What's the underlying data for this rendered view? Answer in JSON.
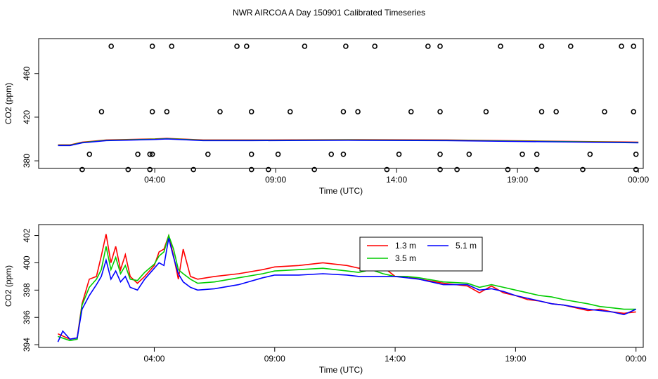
{
  "figure": {
    "title": "NWR AIRCOA A  Day 150901  Calibrated Timeseries"
  },
  "chart_data": [
    {
      "type": "line",
      "panel": "top",
      "xlabel": "Time (UTC)",
      "ylabel": "CO2 (ppm)",
      "xlim_hours": [
        -0.8,
        24.2
      ],
      "ylim": [
        373,
        492
      ],
      "x_ticks": [
        {
          "hour": 4,
          "label": "04:00"
        },
        {
          "hour": 9,
          "label": "09:00"
        },
        {
          "hour": 14,
          "label": "14:00"
        },
        {
          "hour": 19,
          "label": "19:00"
        },
        {
          "hour": 24,
          "label": "00:00"
        }
      ],
      "y_ticks": [
        380,
        420,
        460
      ],
      "colors": {
        "1.3 m": "#ff0000",
        "3.5 m": "#00cc00",
        "5.1 m": "#0000ff"
      },
      "circles": {
        "values": [
          485,
          425,
          386,
          372
        ],
        "hours": [
          [
            2.2,
            3.9,
            4.7,
            7.4,
            7.8,
            10.2,
            11.9,
            13.1,
            15.3,
            15.8,
            18.3,
            20.0,
            21.2,
            23.3,
            23.8
          ],
          [
            1.8,
            3.9,
            4.5,
            6.7,
            8.0,
            9.6,
            11.8,
            12.4,
            14.6,
            15.8,
            17.7,
            20.0,
            20.6,
            22.6,
            23.8
          ],
          [
            1.3,
            3.3,
            3.8,
            3.9,
            6.2,
            8.0,
            9.1,
            11.3,
            11.8,
            14.1,
            15.8,
            17.0,
            19.2,
            19.8,
            22.0,
            23.9
          ],
          [
            1.0,
            2.9,
            3.8,
            5.6,
            8.0,
            8.7,
            10.6,
            13.6,
            15.8,
            16.5,
            18.6,
            19.8,
            21.7,
            23.9
          ]
        ]
      }
    },
    {
      "type": "line",
      "panel": "bottom",
      "xlabel": "Time (UTC)",
      "ylabel": "CO2 (ppm)",
      "xlim_hours": [
        -0.8,
        24.3
      ],
      "ylim": [
        393.8,
        402.8
      ],
      "x_ticks": [
        {
          "hour": 4,
          "label": "04:00"
        },
        {
          "hour": 9,
          "label": "09:00"
        },
        {
          "hour": 14,
          "label": "14:00"
        },
        {
          "hour": 19,
          "label": "19:00"
        },
        {
          "hour": 24,
          "label": "00:00"
        }
      ],
      "y_ticks": [
        394,
        396,
        398,
        400,
        402
      ],
      "legend": {
        "entries": [
          "1.3 m",
          "3.5 m",
          "5.1 m"
        ]
      },
      "series": [
        {
          "name": "1.3 m",
          "color": "#ff0000",
          "points": [
            [
              0.0,
              394.8
            ],
            [
              0.5,
              394.4
            ],
            [
              0.8,
              394.5
            ],
            [
              1.0,
              397.0
            ],
            [
              1.3,
              398.8
            ],
            [
              1.6,
              399.0
            ],
            [
              1.8,
              400.5
            ],
            [
              2.0,
              402.1
            ],
            [
              2.2,
              400.0
            ],
            [
              2.4,
              401.2
            ],
            [
              2.6,
              399.5
            ],
            [
              2.8,
              400.6
            ],
            [
              3.0,
              399.0
            ],
            [
              3.3,
              398.5
            ],
            [
              3.6,
              399.0
            ],
            [
              4.0,
              399.8
            ],
            [
              4.2,
              400.8
            ],
            [
              4.4,
              401.0
            ],
            [
              4.6,
              402.0
            ],
            [
              4.8,
              400.5
            ],
            [
              5.0,
              398.8
            ],
            [
              5.2,
              401.0
            ],
            [
              5.5,
              399.0
            ],
            [
              5.8,
              398.8
            ],
            [
              6.5,
              399.0
            ],
            [
              7.5,
              399.2
            ],
            [
              8.5,
              399.5
            ],
            [
              9.0,
              399.7
            ],
            [
              10.0,
              399.8
            ],
            [
              11.0,
              400.0
            ],
            [
              12.0,
              399.8
            ],
            [
              12.5,
              399.6
            ],
            [
              13.0,
              399.8
            ],
            [
              13.5,
              399.7
            ],
            [
              14.0,
              399.0
            ],
            [
              14.5,
              399.0
            ],
            [
              15.0,
              398.8
            ],
            [
              16.0,
              398.5
            ],
            [
              17.0,
              398.3
            ],
            [
              17.5,
              397.8
            ],
            [
              18.0,
              398.3
            ],
            [
              18.5,
              397.8
            ],
            [
              19.0,
              397.6
            ],
            [
              19.5,
              397.3
            ],
            [
              20.0,
              397.2
            ],
            [
              20.5,
              397.0
            ],
            [
              21.0,
              396.9
            ],
            [
              22.0,
              396.5
            ],
            [
              22.5,
              396.6
            ],
            [
              23.0,
              396.4
            ],
            [
              23.5,
              396.3
            ],
            [
              24.0,
              396.4
            ]
          ]
        },
        {
          "name": "3.5 m",
          "color": "#00cc00",
          "points": [
            [
              0.0,
              394.6
            ],
            [
              0.5,
              394.3
            ],
            [
              0.8,
              394.4
            ],
            [
              1.0,
              396.9
            ],
            [
              1.3,
              398.2
            ],
            [
              1.6,
              398.8
            ],
            [
              1.8,
              399.5
            ],
            [
              2.0,
              401.2
            ],
            [
              2.2,
              399.5
            ],
            [
              2.4,
              400.4
            ],
            [
              2.6,
              399.2
            ],
            [
              2.8,
              399.8
            ],
            [
              3.0,
              398.8
            ],
            [
              3.3,
              398.7
            ],
            [
              3.6,
              399.3
            ],
            [
              4.0,
              399.9
            ],
            [
              4.2,
              400.5
            ],
            [
              4.4,
              400.8
            ],
            [
              4.6,
              402.0
            ],
            [
              4.8,
              401.0
            ],
            [
              5.0,
              399.5
            ],
            [
              5.2,
              399.2
            ],
            [
              5.5,
              398.8
            ],
            [
              5.8,
              398.5
            ],
            [
              6.5,
              398.6
            ],
            [
              7.5,
              398.9
            ],
            [
              8.5,
              399.2
            ],
            [
              9.0,
              399.4
            ],
            [
              10.0,
              399.5
            ],
            [
              11.0,
              399.6
            ],
            [
              12.0,
              399.4
            ],
            [
              12.5,
              399.3
            ],
            [
              13.0,
              399.5
            ],
            [
              13.5,
              399.2
            ],
            [
              14.0,
              399.0
            ],
            [
              14.5,
              399.0
            ],
            [
              15.0,
              398.9
            ],
            [
              16.0,
              398.6
            ],
            [
              17.0,
              398.5
            ],
            [
              17.5,
              398.2
            ],
            [
              18.0,
              398.4
            ],
            [
              18.5,
              398.2
            ],
            [
              19.0,
              398.0
            ],
            [
              19.5,
              397.8
            ],
            [
              20.0,
              397.6
            ],
            [
              20.5,
              397.5
            ],
            [
              21.0,
              397.3
            ],
            [
              22.0,
              397.0
            ],
            [
              22.5,
              396.8
            ],
            [
              23.0,
              396.7
            ],
            [
              23.5,
              396.6
            ],
            [
              24.0,
              396.6
            ]
          ]
        },
        {
          "name": "5.1 m",
          "color": "#0000ff",
          "points": [
            [
              0.0,
              394.2
            ],
            [
              0.2,
              395.0
            ],
            [
              0.5,
              394.4
            ],
            [
              0.8,
              394.5
            ],
            [
              1.0,
              396.6
            ],
            [
              1.3,
              397.6
            ],
            [
              1.6,
              398.4
            ],
            [
              1.8,
              399.0
            ],
            [
              2.0,
              400.2
            ],
            [
              2.2,
              398.8
            ],
            [
              2.4,
              399.4
            ],
            [
              2.6,
              398.6
            ],
            [
              2.8,
              399.0
            ],
            [
              3.0,
              398.2
            ],
            [
              3.3,
              398.0
            ],
            [
              3.6,
              398.8
            ],
            [
              4.0,
              399.6
            ],
            [
              4.2,
              400.0
            ],
            [
              4.4,
              399.8
            ],
            [
              4.6,
              401.8
            ],
            [
              4.8,
              400.4
            ],
            [
              5.0,
              399.2
            ],
            [
              5.2,
              398.6
            ],
            [
              5.5,
              398.2
            ],
            [
              5.8,
              398.0
            ],
            [
              6.5,
              398.1
            ],
            [
              7.5,
              398.4
            ],
            [
              8.5,
              398.9
            ],
            [
              9.0,
              399.1
            ],
            [
              10.0,
              399.1
            ],
            [
              11.0,
              399.2
            ],
            [
              12.0,
              399.1
            ],
            [
              12.5,
              399.0
            ],
            [
              13.0,
              399.0
            ],
            [
              13.5,
              399.0
            ],
            [
              14.0,
              399.0
            ],
            [
              14.5,
              398.9
            ],
            [
              15.0,
              398.8
            ],
            [
              16.0,
              398.4
            ],
            [
              17.0,
              398.4
            ],
            [
              17.5,
              398.0
            ],
            [
              18.0,
              398.1
            ],
            [
              18.5,
              397.9
            ],
            [
              19.0,
              397.6
            ],
            [
              19.5,
              397.4
            ],
            [
              20.0,
              397.2
            ],
            [
              20.5,
              397.0
            ],
            [
              21.0,
              396.9
            ],
            [
              22.0,
              396.6
            ],
            [
              22.5,
              396.5
            ],
            [
              23.0,
              396.4
            ],
            [
              23.5,
              396.2
            ],
            [
              24.0,
              396.6
            ]
          ]
        }
      ]
    }
  ]
}
